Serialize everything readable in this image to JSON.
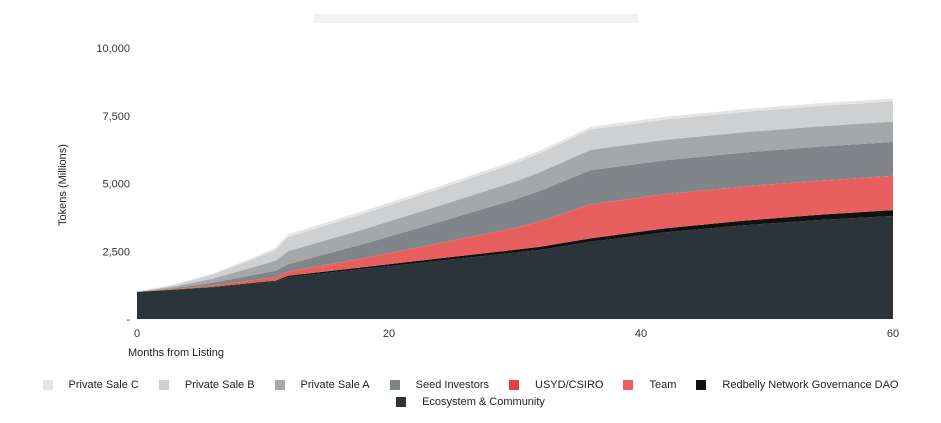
{
  "chart_data": {
    "type": "area",
    "stacked": true,
    "xlabel": "Months from Listing",
    "ylabel": "Tokens (Millions)",
    "xlim": [
      0,
      60
    ],
    "ylim": [
      0,
      10000
    ],
    "x_ticks": [
      "0",
      "20",
      "40",
      "60"
    ],
    "y_ticks": [
      "-",
      "2,500",
      "5,000",
      "7,500",
      "10,000"
    ],
    "x": [
      0,
      3,
      6,
      9,
      11,
      12,
      18,
      24,
      30,
      32,
      36,
      42,
      48,
      54,
      60
    ],
    "series": [
      {
        "name": "Ecosystem & Community",
        "color": "#2b333b",
        "values": [
          1000,
          1080,
          1170,
          1300,
          1380,
          1550,
          1850,
          2150,
          2450,
          2550,
          2850,
          3200,
          3450,
          3650,
          3800
        ]
      },
      {
        "name": "Redbelly Network Governance DAO",
        "color": "#111111",
        "values": [
          0,
          8,
          15,
          25,
          35,
          45,
          65,
          85,
          105,
          115,
          125,
          150,
          170,
          190,
          220
        ]
      },
      {
        "name": "Team",
        "color": "#e85f5f",
        "values": [
          0,
          20,
          50,
          90,
          120,
          150,
          320,
          550,
          800,
          920,
          1250,
          1250,
          1250,
          1250,
          1250
        ]
      },
      {
        "name": "USYD/CSIRO",
        "color": "#e0403f",
        "values": [
          0,
          2,
          5,
          8,
          10,
          12,
          15,
          15,
          15,
          15,
          15,
          15,
          15,
          15,
          15
        ]
      },
      {
        "name": "Seed Investors",
        "color": "#7f8589",
        "values": [
          0,
          30,
          100,
          180,
          230,
          270,
          520,
          780,
          1040,
          1130,
          1250,
          1250,
          1250,
          1250,
          1250
        ]
      },
      {
        "name": "Private Sale A",
        "color": "#a5a7a9",
        "values": [
          0,
          60,
          150,
          280,
          380,
          480,
          540,
          600,
          660,
          690,
          750,
          750,
          750,
          750,
          750
        ]
      },
      {
        "name": "Private Sale B",
        "color": "#cfd0d1",
        "values": [
          0,
          60,
          150,
          280,
          400,
          520,
          580,
          620,
          680,
          700,
          750,
          750,
          750,
          750,
          750
        ]
      },
      {
        "name": "Private Sale C",
        "color": "#e5e5e5",
        "values": [
          0,
          20,
          40,
          60,
          80,
          100,
          100,
          100,
          100,
          100,
          100,
          100,
          100,
          100,
          100
        ]
      }
    ],
    "legend": [
      [
        "Private Sale C",
        "Private Sale B",
        "Private Sale A",
        "Seed Investors",
        "USYD/CSIRO",
        "Team",
        "Redbelly Network Governance DAO"
      ],
      [
        "Ecosystem & Community"
      ]
    ]
  }
}
